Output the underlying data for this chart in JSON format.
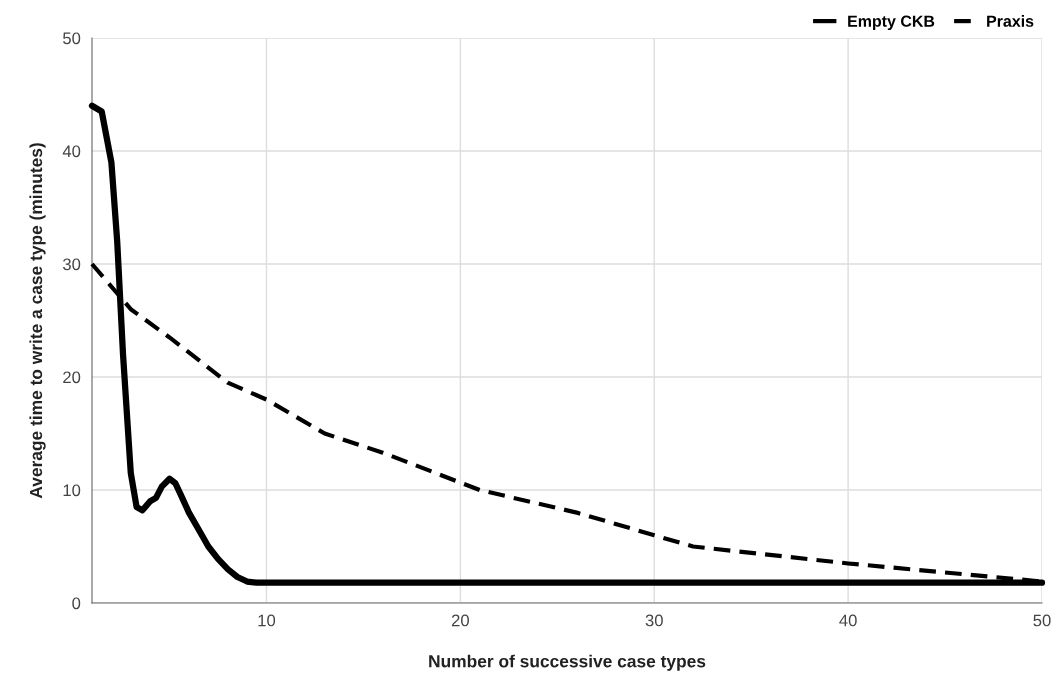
{
  "chart_data": {
    "type": "line",
    "xlabel": "Number of successive case types",
    "ylabel": "Average time to write a case type (minutes)",
    "series": [
      {
        "name": "Empty CKB",
        "color": "#000000",
        "line_style": "solid",
        "x": [
          1,
          1.5,
          2,
          2.3,
          2.6,
          3,
          3.3,
          3.6,
          4,
          4.3,
          4.6,
          5,
          5.3,
          5.6,
          6,
          6.5,
          7,
          7.5,
          8,
          8.5,
          9,
          9.5,
          10,
          15,
          20,
          30,
          40,
          50
        ],
        "values": [
          44,
          43.5,
          39,
          32,
          22,
          11.5,
          8.5,
          8.2,
          9,
          9.3,
          10.3,
          11,
          10.6,
          9.5,
          8,
          6.5,
          5,
          3.9,
          3,
          2.3,
          1.9,
          1.8,
          1.8,
          1.8,
          1.8,
          1.8,
          1.8,
          1.8
        ]
      },
      {
        "name": "Praxis",
        "color": "#000000",
        "line_style": "dashed",
        "x": [
          1,
          3,
          5,
          8,
          10,
          13,
          16,
          21,
          26,
          30,
          32,
          40,
          45,
          50
        ],
        "values": [
          30,
          26,
          23.5,
          19.5,
          18,
          15,
          13.3,
          10,
          8,
          6,
          5,
          3.5,
          2.7,
          1.9
        ]
      }
    ],
    "xlim": [
      1,
      50
    ],
    "xticks": [
      10,
      20,
      30,
      40,
      50
    ],
    "ylim": [
      0,
      50
    ],
    "yticks": [
      0,
      10,
      20,
      30,
      40,
      50
    ],
    "grid": true,
    "legend": "top right"
  }
}
